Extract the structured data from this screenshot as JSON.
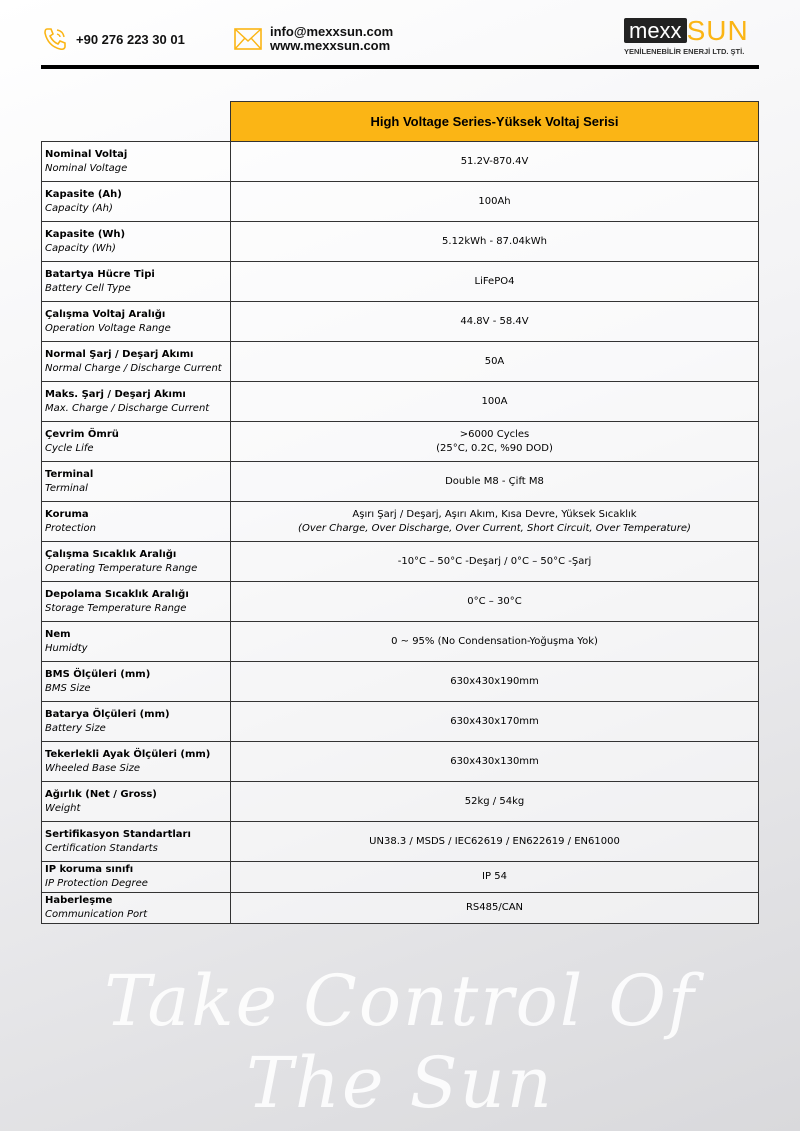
{
  "header": {
    "phone": "+90 276 223 30 01",
    "email": "info@mexxsun.com",
    "website": "www.mexxsun.com",
    "logo_mexx": "mexx",
    "logo_sun": "SUN",
    "logo_sub": "YENİLENEBİLİR ENERJİ LTD. ŞTİ.",
    "accent": "#fbb515"
  },
  "table": {
    "title": "High Voltage Series-Yüksek Voltaj Serisi",
    "rows": [
      {
        "tr": "Nominal Voltaj",
        "en": "Nominal Voltage",
        "value": "51.2V-870.4V"
      },
      {
        "tr": "Kapasite (Ah)",
        "en": "Capacity (Ah)",
        "value": "100Ah"
      },
      {
        "tr": "Kapasite (Wh)",
        "en": "Capacity (Wh)",
        "value": "5.12kWh - 87.04kWh"
      },
      {
        "tr": "Batartya Hücre Tipi",
        "en": "Battery Cell Type",
        "value": "LiFePO4"
      },
      {
        "tr": "Çalışma Voltaj Aralığı",
        "en": "Operation Voltage Range",
        "value": "44.8V - 58.4V"
      },
      {
        "tr": "Normal Şarj / Deşarj Akımı",
        "en": "Normal Charge / Discharge Current",
        "value": "50A"
      },
      {
        "tr": "Maks. Şarj / Deşarj Akımı",
        "en": "Max. Charge / Discharge Current",
        "value": "100A"
      },
      {
        "tr": "Çevrim Ömrü",
        "en": "Cycle Life",
        "value": ">6000 Cycles",
        "value2": "(25°C, 0.2C, %90 DOD)"
      },
      {
        "tr": "Terminal",
        "en": "Terminal",
        "value": "Double M8 - Çift M8"
      },
      {
        "tr": "Koruma",
        "en": "Protection",
        "value": "Aşırı Şarj / Deşarj, Aşırı Akım, Kısa Devre, Yüksek Sıcaklık",
        "value2": "(Over Charge, Over Discharge, Over Current, Short Circuit, Over Temperature)"
      },
      {
        "tr": "Çalışma Sıcaklık Aralığı",
        "en": "Operating Temperature Range",
        "value": "-10°C – 50°C -Deşarj / 0°C – 50°C -Şarj"
      },
      {
        "tr": "Depolama Sıcaklık Aralığı",
        "en": "Storage Temperature Range",
        "value": "0°C – 30°C"
      },
      {
        "tr": "Nem",
        "en": "Humidty",
        "value": "0 ~ 95% (No Condensation-Yoğuşma Yok)"
      },
      {
        "tr": "BMS Ölçüleri (mm)",
        "en": "BMS Size",
        "value": "630x430x190mm"
      },
      {
        "tr": "Batarya Ölçüleri (mm)",
        "en": "Battery Size",
        "value": "630x430x170mm"
      },
      {
        "tr": "Tekerlekli Ayak Ölçüleri (mm)",
        "en": "Wheeled Base Size",
        "value": "630x430x130mm"
      },
      {
        "tr": "Ağırlık (Net / Gross)",
        "en": "Weight",
        "value": "52kg / 54kg"
      },
      {
        "tr": "Sertifikasyon Standartları",
        "en": "Certification Standarts",
        "value": "UN38.3 / MSDS / IEC62619 / EN622619 / EN61000"
      },
      {
        "tr": "IP koruma sınıfı",
        "en": "IP Protection Degree",
        "value": "IP 54"
      },
      {
        "tr": "Haberleşme",
        "en": "Communication Port",
        "value": "RS485/CAN"
      }
    ]
  },
  "slogan": "Take Control Of The Sun"
}
